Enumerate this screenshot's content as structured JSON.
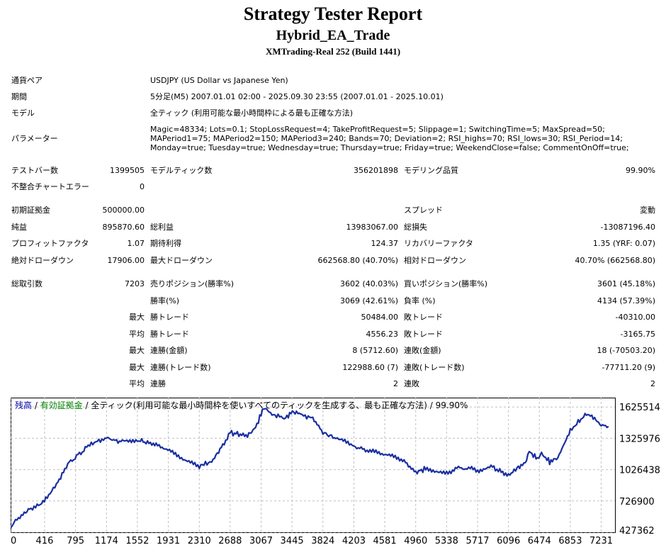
{
  "header": {
    "title": "Strategy Tester Report",
    "ea_name": "Hybrid_EA_Trade",
    "server": "XMTrading-Real 252 (Build 1441)"
  },
  "info": {
    "symbol_label": "通貨ペア",
    "symbol_value": "USDJPY (US Dollar vs Japanese Yen)",
    "period_label": "期間",
    "period_value": "5分足(M5) 2007.01.01 02:00 - 2025.09.30 23:55 (2007.01.01 - 2025.10.01)",
    "model_label": "モデル",
    "model_value": "全ティック (利用可能な最小時間枠による最も正確な方法)",
    "params_label": "パラメーター",
    "params_value": "Magic=48334; Lots=0.1; StopLossRequest=4; TakeProfitRequest=5; Slippage=1; SwitchingTime=5; MaxSpread=50; MAPeriod1=75; MAPeriod2=150; MAPeriod3=240; Bands=70; Deviation=2; RSI_highs=70; RSI_lows=30; RSI_Period=14; Monday=true; Tuesday=true; Wednesday=true; Thursday=true; Friday=true; WeekendClose=false; CommentOnOff=true;"
  },
  "stats": {
    "bars_label": "テストバー数",
    "bars_value": "1399505",
    "ticks_label": "モデルティック数",
    "ticks_value": "356201898",
    "quality_label": "モデリング品質",
    "quality_value": "99.90%",
    "mismatch_label": "不整合チャートエラー",
    "mismatch_value": "0",
    "deposit_label": "初期証拠金",
    "deposit_value": "500000.00",
    "spread_label": "スプレッド",
    "spread_value": "変動",
    "netprofit_label": "純益",
    "netprofit_value": "895870.60",
    "grossprofit_label": "総利益",
    "grossprofit_value": "13983067.00",
    "grossloss_label": "総損失",
    "grossloss_value": "-13087196.40",
    "pf_label": "プロフィットファクタ",
    "pf_value": "1.07",
    "expected_label": "期待利得",
    "expected_value": "124.37",
    "recovery_label": "リカバリーファクタ",
    "recovery_value": "1.35 (YRF: 0.07)",
    "absdd_label": "絶対ドローダウン",
    "absdd_value": "17906.00",
    "maxdd_label": "最大ドローダウン",
    "maxdd_value": "662568.80 (40.70%)",
    "reldd_label": "相対ドローダウン",
    "reldd_value": "40.70% (662568.80)",
    "trades_label": "総取引数",
    "trades_value": "7203",
    "short_label": "売りポジション(勝率%)",
    "short_value": "3602 (40.03%)",
    "long_label": "買いポジション(勝率%)",
    "long_value": "3601 (45.18%)",
    "winpct_label": "勝率(%)",
    "winpct_value": "3069 (42.61%)",
    "losspct_label": "負率 (%)",
    "losspct_value": "4134 (57.39%)",
    "max1": "最大",
    "win_trade_label": "勝トレード",
    "max_win_value": "50484.00",
    "loss_trade_label": "敗トレード",
    "max_loss_value": "-40310.00",
    "avg1": "平均",
    "avg_win_label": "勝トレード",
    "avg_win_value": "4556.23",
    "avg_loss_label": "敗トレード",
    "avg_loss_value": "-3165.75",
    "max2": "最大",
    "consec_win_amt_label": "連勝(金額)",
    "consec_win_amt_value": "8 (5712.60)",
    "consec_loss_amt_label": "連敗(金額)",
    "consec_loss_amt_value": "18 (-70503.20)",
    "max3": "最大",
    "consec_win_cnt_label": "連勝(トレード数)",
    "consec_win_cnt_value": "122988.60 (7)",
    "consec_loss_cnt_label": "連敗(トレード数)",
    "consec_loss_cnt_value": "-77711.20 (9)",
    "avg2": "平均",
    "avg_consec_win_label": "連勝",
    "avg_consec_win_value": "2",
    "avg_consec_loss_label": "連敗",
    "avg_consec_loss_value": "2"
  },
  "chart_legend": {
    "balance": "残高",
    "sep1": " / ",
    "equity": "有効証拠金",
    "rest": " / 全ティック(利用可能な最小時間枠を使いすべてのティックを生成する、最も正確な方法) / 99.90%"
  },
  "colors": {
    "balance": "#0000aa",
    "equity": "#008000",
    "line": "#1a2fa0",
    "grid": "#c0c0c0"
  },
  "chart_data": {
    "type": "line",
    "title": "",
    "xlabel": "",
    "ylabel": "",
    "xlim": [
      0,
      7400
    ],
    "ylim": [
      427362,
      1715000
    ],
    "x_ticks": [
      0,
      416,
      795,
      1174,
      1552,
      1931,
      2310,
      2688,
      3067,
      3445,
      3824,
      4203,
      4581,
      4960,
      5338,
      5717,
      6096,
      6474,
      6853,
      7231
    ],
    "y_ticks": [
      427362,
      726900,
      1026438,
      1325976,
      1625514
    ],
    "grid": true,
    "series": [
      {
        "x": [
          0,
          60,
          150,
          250,
          380,
          430,
          560,
          700,
          950,
          1174,
          1350,
          1552,
          1800,
          2000,
          2310,
          2480,
          2580,
          2688,
          2900,
          3000,
          3100,
          3200,
          3350,
          3450,
          3550,
          3700,
          3824,
          4000,
          4203,
          4400,
          4600,
          4800,
          4960,
          5100,
          5338,
          5500,
          5717,
          5900,
          6096,
          6200,
          6300,
          6350,
          6450,
          6500,
          6600,
          6700,
          6853,
          6950,
          7050,
          7150,
          7231,
          7320
        ],
        "y": [
          470000,
          540000,
          600000,
          660000,
          710000,
          740000,
          880000,
          1080000,
          1250000,
          1330000,
          1290000,
          1310000,
          1260000,
          1180000,
          1050000,
          1120000,
          1240000,
          1380000,
          1350000,
          1430000,
          1620000,
          1560000,
          1510000,
          1580000,
          1560000,
          1520000,
          1380000,
          1320000,
          1250000,
          1200000,
          1180000,
          1120000,
          1000000,
          1040000,
          990000,
          1050000,
          1020000,
          1050000,
          970000,
          1040000,
          1090000,
          1200000,
          1130000,
          1180000,
          1100000,
          1140000,
          1400000,
          1480000,
          1560000,
          1520000,
          1450000,
          1440000
        ]
      }
    ]
  }
}
